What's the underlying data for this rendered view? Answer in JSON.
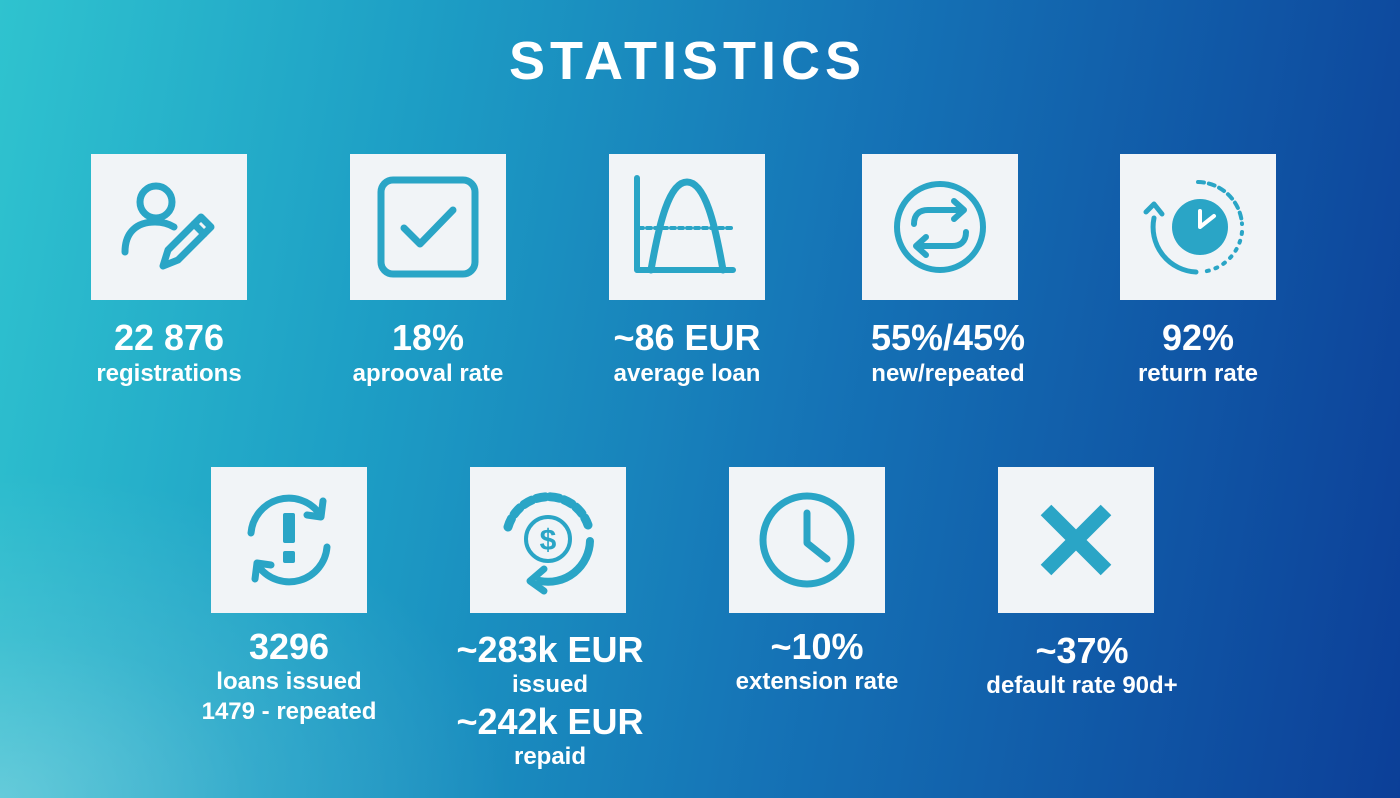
{
  "title": "STATISTICS",
  "colors": {
    "accent": "#2aa5c6",
    "card_bg": "#f1f4f7",
    "text": "#ffffff",
    "gradient_start": "#2fc3cf",
    "gradient_end": "#0c3f98"
  },
  "stats": [
    {
      "icon": "user-edit-icon",
      "value": "22 876",
      "label": "registrations"
    },
    {
      "icon": "checkbox-icon",
      "value": "18%",
      "label": "aprooval rate"
    },
    {
      "icon": "bell-curve-icon",
      "value": "~86 EUR",
      "label": "average loan"
    },
    {
      "icon": "swap-arrows-icon",
      "value": "55%/45%",
      "label": "new/repeated"
    },
    {
      "icon": "clock-return-icon",
      "value": "92%",
      "label": "return rate"
    },
    {
      "icon": "refresh-alert-icon",
      "value": "3296",
      "label": "loans issued",
      "sublabel": "1479 -  repeated"
    },
    {
      "icon": "dollar-cycle-icon",
      "value": "~283k EUR",
      "label": "issued",
      "value2": "~242k EUR",
      "label2": "repaid"
    },
    {
      "icon": "clock-icon",
      "value": "~10%",
      "label": "extension rate"
    },
    {
      "icon": "close-x-icon",
      "value": "~37%",
      "label": "default rate 90d+"
    }
  ]
}
